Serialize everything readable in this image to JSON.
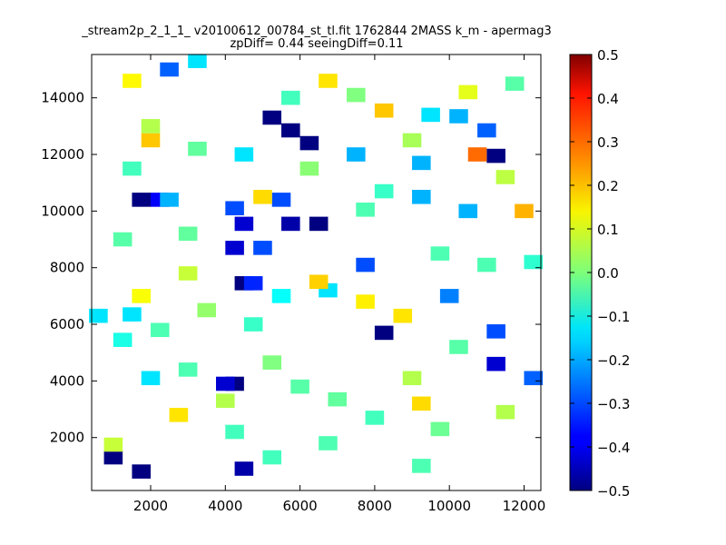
{
  "chart_data": {
    "type": "heatmap",
    "title": "_stream2p_2_1_1_ v20100612_00784_st_tl.fit 1762844 2MASS k_m - apermag3",
    "subtitle": "zpDiff= 0.44 seeingDiff=0.11",
    "xlabel": "",
    "ylabel": "",
    "xlim": [
      420,
      12450
    ],
    "ylim": [
      130,
      15530
    ],
    "x_ticks": [
      2000,
      4000,
      6000,
      8000,
      10000,
      12000
    ],
    "y_ticks": [
      2000,
      4000,
      6000,
      8000,
      10000,
      12000,
      14000
    ],
    "colormap": "jet",
    "colorbar": {
      "range": [
        -0.5,
        0.5
      ],
      "ticks": [
        0.5,
        0.4,
        0.3,
        0.2,
        0.1,
        0.0,
        -0.1,
        -0.2,
        -0.3,
        -0.4,
        -0.5
      ],
      "tick_labels": [
        "0.5",
        "0.4",
        "0.3",
        "0.2",
        "0.1",
        "0.0",
        "−0.1",
        "−0.2",
        "−0.3",
        "−0.4",
        "−0.5"
      ]
    },
    "grid": false,
    "bin_size": 500,
    "cells": [
      [
        4500,
        900,
        -0.46
      ],
      [
        1000,
        1300,
        -0.5
      ],
      [
        1750,
        800,
        -0.5
      ],
      [
        4250,
        3900,
        -0.5
      ],
      [
        4000,
        3900,
        -0.42
      ],
      [
        4500,
        7450,
        -0.5
      ],
      [
        8250,
        5700,
        -0.5
      ],
      [
        11250,
        11950,
        -0.5
      ],
      [
        6250,
        12400,
        -0.5
      ],
      [
        5750,
        12850,
        -0.5
      ],
      [
        5250,
        13300,
        -0.5
      ],
      [
        5750,
        9550,
        -0.46
      ],
      [
        4500,
        9550,
        -0.42
      ],
      [
        4250,
        8700,
        -0.42
      ],
      [
        1750,
        10400,
        -0.5
      ],
      [
        2250,
        10400,
        -0.38
      ],
      [
        6500,
        9550,
        -0.5
      ],
      [
        5000,
        8700,
        -0.3
      ],
      [
        4750,
        7450,
        -0.34
      ],
      [
        11250,
        4600,
        -0.42
      ],
      [
        12250,
        4100,
        -0.28
      ],
      [
        11250,
        5750,
        -0.3
      ],
      [
        7750,
        8100,
        -0.3
      ],
      [
        11000,
        12850,
        -0.28
      ],
      [
        5500,
        10400,
        -0.3
      ],
      [
        4250,
        10100,
        -0.3
      ],
      [
        2500,
        15000,
        -0.28
      ],
      [
        2000,
        4100,
        -0.15
      ],
      [
        10500,
        10000,
        -0.2
      ],
      [
        10000,
        7000,
        -0.25
      ],
      [
        10250,
        13350,
        -0.2
      ],
      [
        9500,
        13400,
        -0.15
      ],
      [
        7500,
        12000,
        -0.2
      ],
      [
        1250,
        5450,
        -0.1
      ],
      [
        3250,
        15300,
        -0.15
      ],
      [
        4500,
        12000,
        -0.15
      ],
      [
        9250,
        11700,
        -0.2
      ],
      [
        9250,
        10500,
        -0.2
      ],
      [
        12250,
        8200,
        -0.08
      ],
      [
        6750,
        7200,
        -0.15
      ],
      [
        1500,
        6350,
        -0.15
      ],
      [
        600,
        6300,
        -0.15
      ],
      [
        5500,
        7000,
        -0.12
      ],
      [
        2500,
        10400,
        -0.2
      ],
      [
        10750,
        12000,
        0.27
      ],
      [
        12000,
        10000,
        0.2
      ],
      [
        2000,
        12500,
        0.18
      ],
      [
        8250,
        13550,
        0.18
      ],
      [
        5000,
        10500,
        0.16
      ],
      [
        6500,
        7500,
        0.17
      ],
      [
        8750,
        6300,
        0.15
      ],
      [
        9250,
        3200,
        0.16
      ],
      [
        2750,
        2800,
        0.15
      ],
      [
        7750,
        6800,
        0.14
      ],
      [
        1500,
        14600,
        0.13
      ],
      [
        6750,
        14600,
        0.15
      ],
      [
        1750,
        7000,
        0.12
      ],
      [
        10500,
        14200,
        0.1
      ],
      [
        4000,
        3300,
        0.05
      ],
      [
        9000,
        4100,
        0.05
      ],
      [
        11500,
        2900,
        0.05
      ],
      [
        1000,
        1750,
        0.07
      ],
      [
        3000,
        7800,
        0.07
      ],
      [
        9750,
        2300,
        -0.02
      ],
      [
        7000,
        3350,
        -0.03
      ],
      [
        5250,
        4650,
        0.0
      ],
      [
        3500,
        6500,
        0.02
      ],
      [
        6250,
        11500,
        0.01
      ],
      [
        7500,
        14100,
        0.0
      ],
      [
        2000,
        13000,
        0.05
      ],
      [
        9000,
        12500,
        0.04
      ],
      [
        3000,
        9200,
        -0.03
      ],
      [
        11500,
        11200,
        0.06
      ],
      [
        9750,
        8500,
        -0.05
      ],
      [
        4250,
        2200,
        -0.06
      ],
      [
        2250,
        5800,
        -0.05
      ],
      [
        10250,
        5200,
        -0.04
      ],
      [
        5750,
        14000,
        -0.06
      ],
      [
        8250,
        10700,
        -0.07
      ],
      [
        3250,
        12200,
        -0.03
      ],
      [
        6750,
        1800,
        -0.05
      ],
      [
        8000,
        2700,
        -0.06
      ],
      [
        1250,
        9000,
        -0.04
      ],
      [
        11000,
        8100,
        -0.05
      ],
      [
        4750,
        6000,
        -0.07
      ],
      [
        6000,
        3800,
        -0.04
      ],
      [
        9250,
        1000,
        -0.05
      ],
      [
        11750,
        14500,
        -0.04
      ],
      [
        1500,
        11500,
        -0.06
      ],
      [
        5250,
        1300,
        -0.06
      ],
      [
        3000,
        4400,
        -0.05
      ],
      [
        7750,
        10050,
        -0.05
      ]
    ]
  }
}
